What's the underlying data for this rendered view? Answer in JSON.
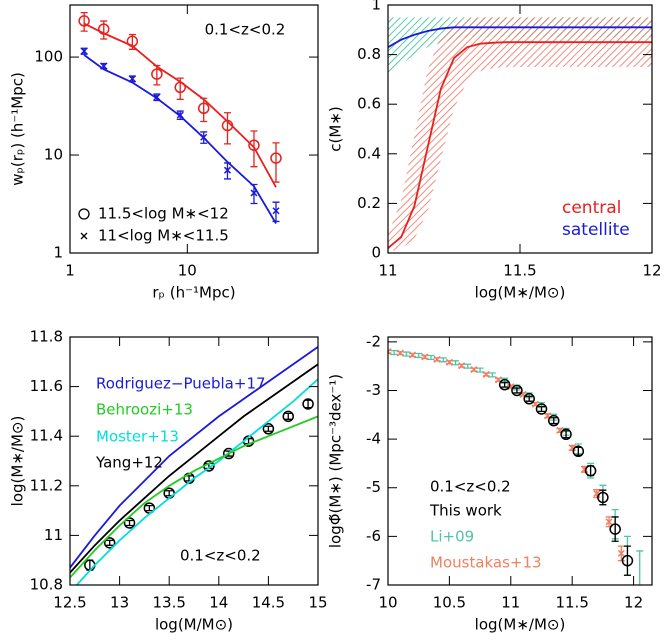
{
  "chart_data": [
    {
      "type": "scatter",
      "xlog": true,
      "ylog": true,
      "xlabel": "rₚ (h⁻¹Mpc)",
      "ylabel": "wₚ(rₚ) (h⁻¹Mpc)",
      "annotations": [
        "0.1<z<0.2"
      ],
      "xlim": [
        1,
        130
      ],
      "ylim": [
        1,
        340
      ],
      "xticks": [
        1,
        10
      ],
      "yticks": [
        1,
        10,
        100
      ],
      "series": [
        {
          "name": "11.5<log M∗<12",
          "color": "#e8201e",
          "marker": "circle",
          "x": [
            1.32,
            1.94,
            3.4,
            5.5,
            8.7,
            13.8,
            22,
            37,
            57
          ],
          "values": [
            234,
            193,
            145,
            67,
            49,
            30,
            20,
            12.6,
            9.3
          ],
          "errors": [
            50,
            40,
            25,
            15,
            12,
            8,
            7,
            5,
            4
          ]
        },
        {
          "name": "11<log M∗<11.5",
          "color": "#1a1adb",
          "marker": "cross",
          "x": [
            1.32,
            1.94,
            3.4,
            5.5,
            8.7,
            13.8,
            22,
            37,
            57
          ],
          "values": [
            115,
            81,
            60,
            39,
            25.6,
            15.2,
            7,
            4.1,
            2.7
          ],
          "errors": [
            8,
            5,
            4,
            3,
            2.5,
            2,
            1.3,
            0.9,
            0.6
          ]
        },
        {
          "color": "#e8201e",
          "marker": "line",
          "x": [
            1.32,
            1.94,
            3.4,
            5.5,
            8.7,
            13.8,
            22,
            37,
            57
          ],
          "values": [
            220,
            175,
            130,
            80,
            56,
            37,
            22,
            12,
            4.7
          ]
        },
        {
          "color": "#1a1adb",
          "marker": "line",
          "x": [
            1.32,
            1.94,
            3.4,
            5.5,
            8.7,
            13.8,
            22,
            37,
            57
          ],
          "values": [
            105,
            75,
            55,
            38,
            25,
            15,
            8.5,
            4.8,
            2.0
          ]
        }
      ]
    },
    {
      "type": "line",
      "xlabel": "log(M∗/M⊙)",
      "ylabel": "c(M∗)",
      "xlim": [
        11,
        12
      ],
      "ylim": [
        0,
        1
      ],
      "xticks": [
        11,
        11.5,
        12
      ],
      "yticks": [
        0,
        0.2,
        0.4,
        0.6,
        0.8,
        1
      ],
      "x": [
        11,
        11.05,
        11.1,
        11.15,
        11.2,
        11.25,
        11.3,
        11.35,
        11.4,
        11.45,
        11.5,
        11.55,
        11.6,
        11.65,
        11.7,
        11.75,
        11.8,
        11.85,
        11.9,
        11.95,
        12
      ],
      "series": [
        {
          "name": "central",
          "color": "#e8201e",
          "band_color": "#f07060",
          "values": [
            0.02,
            0.064,
            0.189,
            0.425,
            0.661,
            0.786,
            0.83,
            0.844,
            0.848,
            0.85,
            0.85,
            0.85,
            0.85,
            0.85,
            0.85,
            0.85,
            0.85,
            0.85,
            0.85,
            0.85,
            0.85
          ],
          "upper": [
            0.072,
            0.212,
            0.475,
            0.738,
            0.878,
            0.928,
            0.945,
            0.949,
            0.95,
            0.95,
            0.95,
            0.95,
            0.95,
            0.95,
            0.95,
            0.95,
            0.95,
            0.95,
            0.95,
            0.95,
            0.95
          ],
          "lower": [
            0.005,
            0.017,
            0.057,
            0.167,
            0.375,
            0.583,
            0.693,
            0.733,
            0.746,
            0.749,
            0.75,
            0.75,
            0.75,
            0.75,
            0.75,
            0.75,
            0.75,
            0.75,
            0.75,
            0.75,
            0.75
          ]
        },
        {
          "name": "satellite",
          "color": "#1a1adb",
          "band_color": "#2fbf8f",
          "values": [
            0.83,
            0.86,
            0.88,
            0.895,
            0.905,
            0.91,
            0.91,
            0.91,
            0.91,
            0.91,
            0.91,
            0.91,
            0.91,
            0.91,
            0.91,
            0.91,
            0.91,
            0.91,
            0.91,
            0.91,
            0.91
          ],
          "upper": [
            0.95,
            0.95,
            0.95,
            0.95,
            0.95,
            0.95,
            0.95,
            0.95,
            0.95,
            0.95,
            0.95,
            0.95,
            0.95,
            0.95,
            0.95,
            0.95,
            0.95,
            0.95,
            0.95,
            0.95,
            0.95
          ],
          "lower": [
            0.72,
            0.76,
            0.8,
            0.83,
            0.85,
            0.86,
            0.87,
            0.87,
            0.87,
            0.87,
            0.87,
            0.87,
            0.87,
            0.87,
            0.87,
            0.87,
            0.87,
            0.87,
            0.87,
            0.87,
            0.87
          ]
        }
      ]
    },
    {
      "type": "scatter",
      "xlabel": "log(M/M⊙)",
      "ylabel": "log(M∗/M⊙)",
      "annotations": [
        "0.1<z<0.2"
      ],
      "xlim": [
        12.5,
        15
      ],
      "ylim": [
        10.8,
        11.8
      ],
      "xticks": [
        12.5,
        13,
        13.5,
        14,
        14.5,
        15
      ],
      "yticks": [
        10.8,
        11,
        11.2,
        11.4,
        11.6,
        11.8
      ],
      "series": [
        {
          "name": "Rodriguez−Puebla+17",
          "color": "#1a1adb",
          "marker": "line",
          "x": [
            12.5,
            12.75,
            13,
            13.25,
            13.5,
            13.75,
            14,
            14.25,
            14.5,
            14.75,
            15
          ],
          "values": [
            10.87,
            11.0,
            11.12,
            11.22,
            11.32,
            11.4,
            11.48,
            11.55,
            11.62,
            11.69,
            11.76
          ]
        },
        {
          "name": "Behroozi+13",
          "color": "#22cc22",
          "marker": "line",
          "x": [
            12.5,
            12.75,
            13,
            13.25,
            13.5,
            13.75,
            14,
            14.25,
            14.5,
            14.75,
            15
          ],
          "values": [
            10.83,
            10.94,
            11.04,
            11.13,
            11.2,
            11.26,
            11.31,
            11.36,
            11.4,
            11.44,
            11.48
          ]
        },
        {
          "name": "Moster+13",
          "color": "#00dede",
          "marker": "line",
          "x": [
            12.5,
            12.75,
            13,
            13.25,
            13.5,
            13.75,
            14,
            14.25,
            14.5,
            14.75,
            15
          ],
          "values": [
            10.77,
            10.88,
            10.98,
            11.07,
            11.15,
            11.23,
            11.3,
            11.38,
            11.46,
            11.54,
            11.63
          ]
        },
        {
          "name": "Yang+12",
          "color": "#000000",
          "marker": "line",
          "x": [
            12.5,
            12.75,
            13,
            13.25,
            13.5,
            13.75,
            14,
            14.25,
            14.5,
            14.75,
            15
          ],
          "values": [
            10.85,
            10.96,
            11.06,
            11.15,
            11.24,
            11.32,
            11.4,
            11.48,
            11.55,
            11.62,
            11.69
          ]
        },
        {
          "color": "#000000",
          "marker": "circle",
          "x": [
            12.7,
            12.9,
            13.1,
            13.3,
            13.5,
            13.7,
            13.9,
            14.1,
            14.3,
            14.5,
            14.7,
            14.9
          ],
          "values": [
            10.88,
            10.97,
            11.05,
            11.11,
            11.17,
            11.23,
            11.28,
            11.33,
            11.38,
            11.43,
            11.48,
            11.53
          ],
          "errors": [
            0.02,
            0.01,
            0.01,
            0.01,
            0.01,
            0.01,
            0.01,
            0.01,
            0.01,
            0.01,
            0.012,
            0.015
          ]
        }
      ]
    },
    {
      "type": "scatter",
      "xlabel": "log(M∗/M⊙)",
      "ylabel": "logΦ̃(M∗) (Mpc⁻³dex⁻¹)",
      "annotations": [
        "0.1<z<0.2"
      ],
      "xlim": [
        10,
        12.15
      ],
      "ylim": [
        -7,
        -1.9
      ],
      "xticks": [
        10,
        10.5,
        11,
        11.5,
        12
      ],
      "yticks": [
        -2,
        -3,
        -4,
        -5,
        -6,
        -7
      ],
      "series": [
        {
          "name": "This work",
          "color": "#000000",
          "marker": "circle",
          "x": [
            10.95,
            11.05,
            11.15,
            11.25,
            11.35,
            11.45,
            11.55,
            11.65,
            11.75,
            11.85,
            11.95
          ],
          "values": [
            -2.88,
            -3.0,
            -3.17,
            -3.38,
            -3.62,
            -3.9,
            -4.25,
            -4.65,
            -5.2,
            -5.85,
            -6.5
          ],
          "errors": [
            0.05,
            0.05,
            0.05,
            0.05,
            0.06,
            0.07,
            0.08,
            0.1,
            0.15,
            0.25,
            0.3
          ]
        },
        {
          "name": "Li+09",
          "color": "#4fc4a8",
          "marker": "errorbar",
          "x": [
            10.05,
            10.15,
            10.25,
            10.35,
            10.45,
            10.55,
            10.65,
            10.75,
            10.85,
            10.95,
            11.05,
            11.15,
            11.25,
            11.35,
            11.45,
            11.55,
            11.65,
            11.75,
            11.85,
            11.95,
            12.05
          ],
          "values": [
            -2.22,
            -2.25,
            -2.28,
            -2.32,
            -2.37,
            -2.43,
            -2.5,
            -2.58,
            -2.68,
            -2.8,
            -2.94,
            -3.1,
            -3.3,
            -3.55,
            -3.85,
            -4.2,
            -4.65,
            -5.15,
            -5.75,
            -6.4,
            -6.8
          ],
          "errors": [
            0.04,
            0.04,
            0.04,
            0.04,
            0.04,
            0.04,
            0.04,
            0.04,
            0.04,
            0.05,
            0.05,
            0.05,
            0.05,
            0.06,
            0.07,
            0.1,
            0.15,
            0.2,
            0.3,
            0.4,
            0.5
          ]
        },
        {
          "name": "Moustakas+13",
          "color": "#f08060",
          "marker": "cross",
          "x": [
            10.0,
            10.1,
            10.2,
            10.3,
            10.4,
            10.5,
            10.6,
            10.7,
            10.8,
            10.9,
            11.0,
            11.1,
            11.2,
            11.3,
            11.4,
            11.5,
            11.6,
            11.7,
            11.8,
            11.9
          ],
          "values": [
            -2.2,
            -2.23,
            -2.27,
            -2.31,
            -2.36,
            -2.42,
            -2.49,
            -2.57,
            -2.67,
            -2.78,
            -2.92,
            -3.08,
            -3.28,
            -3.52,
            -3.82,
            -4.18,
            -4.62,
            -5.12,
            -5.7,
            -6.35
          ],
          "errors": [
            0.03,
            0.03,
            0.03,
            0.03,
            0.03,
            0.03,
            0.03,
            0.03,
            0.03,
            0.03,
            0.03,
            0.03,
            0.03,
            0.04,
            0.04,
            0.05,
            0.06,
            0.08,
            0.1,
            0.15
          ]
        }
      ]
    }
  ]
}
